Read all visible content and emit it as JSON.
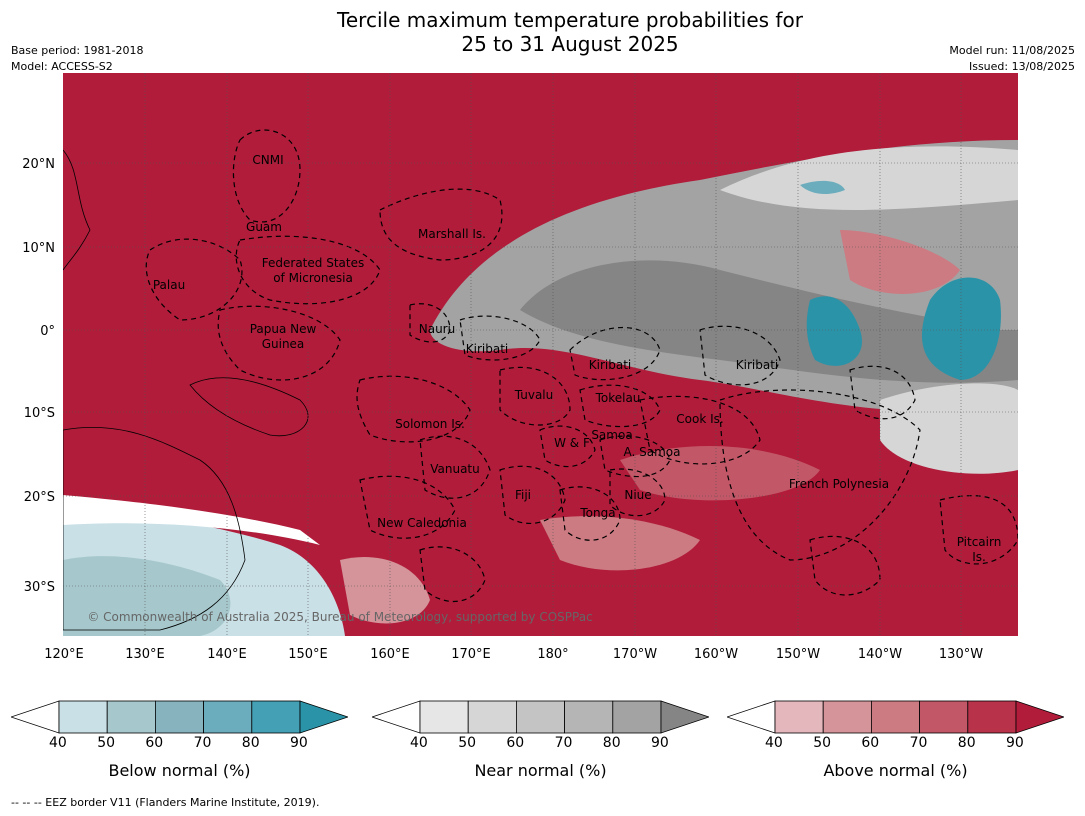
{
  "title": {
    "line1": "Tercile maximum temperature probabilities for",
    "line2": "25 to 31 August 2025"
  },
  "meta": {
    "base_period": "Base period: 1981-2018",
    "model": "Model: ACCESS-S2",
    "model_run": "Model run: 11/08/2025",
    "issued": "Issued: 13/08/2025"
  },
  "map": {
    "lon_ticks": [
      "120°E",
      "130°E",
      "140°E",
      "150°E",
      "160°E",
      "170°E",
      "180°",
      "170°W",
      "160°W",
      "150°W",
      "140°W",
      "130°W"
    ],
    "lat_ticks": [
      "20°N",
      "10°N",
      "0°",
      "10°S",
      "20°S",
      "30°S"
    ],
    "copyright": "© Commonwealth of Australia 2025, Bureau of Meteorology, supported by COSPPac",
    "labels": [
      "CNMI",
      "Guam",
      "Marshall Is.",
      "Federated States",
      "of Micronesia",
      "Palau",
      "Papua New",
      "Guinea",
      "Nauru",
      "Kiribati",
      "Kiribati",
      "Kiribati",
      "Tuvalu",
      "Tokelau",
      "Solomon Is.",
      "Cook Is.",
      "W & F",
      "Samoa",
      "A. Samoa",
      "Vanuatu",
      "Fiji",
      "Niue",
      "French Polynesia",
      "Tonga",
      "New Caledonia",
      "Pitcairn",
      "Is."
    ]
  },
  "colorbars": [
    {
      "title": "Below normal (%)",
      "ticks": [
        "40",
        "50",
        "60",
        "70",
        "80",
        "90"
      ],
      "colors": [
        "#c9e0e6",
        "#a6c8cc",
        "#86b3bd",
        "#6cadbd",
        "#44a0b4",
        "#2b93a8"
      ]
    },
    {
      "title": "Near normal (%)",
      "ticks": [
        "40",
        "50",
        "60",
        "70",
        "80",
        "90"
      ],
      "colors": [
        "#e6e6e6",
        "#d6d6d6",
        "#c4c4c4",
        "#b5b5b5",
        "#a3a3a3",
        "#858585"
      ]
    },
    {
      "title": "Above normal (%)",
      "ticks": [
        "40",
        "50",
        "60",
        "70",
        "80",
        "90"
      ],
      "colors": [
        "#e3b7bc",
        "#d4949a",
        "#cc7b82",
        "#c25767",
        "#b8334a",
        "#b01c3a"
      ]
    }
  ],
  "footer": "--  --  -- EEZ border V11 (Flanders Marine Institute, 2019)."
}
